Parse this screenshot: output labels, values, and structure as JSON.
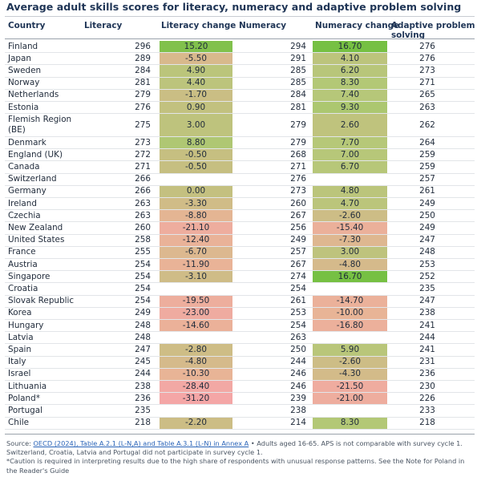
{
  "chart_data": {
    "type": "table",
    "title": "Average adult skills scores for literacy, numeracy and adaptive problem solving",
    "columns": [
      "Country",
      "Literacy",
      "Literacy change",
      "Numeracy",
      "Numeracy change",
      "Adaptive problem solving"
    ],
    "rows": [
      {
        "country": "Finland",
        "literacy": "296",
        "literacy_change": "15.20",
        "numeracy": "294",
        "numeracy_change": "16.70",
        "aps": "276"
      },
      {
        "country": "Japan",
        "literacy": "289",
        "literacy_change": "-5.50",
        "numeracy": "291",
        "numeracy_change": "4.10",
        "aps": "276"
      },
      {
        "country": "Sweden",
        "literacy": "284",
        "literacy_change": "4.90",
        "numeracy": "285",
        "numeracy_change": "6.20",
        "aps": "273"
      },
      {
        "country": "Norway",
        "literacy": "281",
        "literacy_change": "4.40",
        "numeracy": "285",
        "numeracy_change": "8.30",
        "aps": "271"
      },
      {
        "country": "Netherlands",
        "literacy": "279",
        "literacy_change": "-1.70",
        "numeracy": "284",
        "numeracy_change": "7.40",
        "aps": "265"
      },
      {
        "country": "Estonia",
        "literacy": "276",
        "literacy_change": "0.90",
        "numeracy": "281",
        "numeracy_change": "9.30",
        "aps": "263"
      },
      {
        "country": "Flemish Region (BE)",
        "literacy": "275",
        "literacy_change": "3.00",
        "numeracy": "279",
        "numeracy_change": "2.60",
        "aps": "262"
      },
      {
        "country": "Denmark",
        "literacy": "273",
        "literacy_change": "8.80",
        "numeracy": "279",
        "numeracy_change": "7.70",
        "aps": "264"
      },
      {
        "country": "England (UK)",
        "literacy": "272",
        "literacy_change": "-0.50",
        "numeracy": "268",
        "numeracy_change": "7.00",
        "aps": "259"
      },
      {
        "country": "Canada",
        "literacy": "271",
        "literacy_change": "-0.50",
        "numeracy": "271",
        "numeracy_change": "6.70",
        "aps": "259"
      },
      {
        "country": "Switzerland",
        "literacy": "266",
        "literacy_change": "",
        "numeracy": "276",
        "numeracy_change": "",
        "aps": "257"
      },
      {
        "country": "Germany",
        "literacy": "266",
        "literacy_change": "0.00",
        "numeracy": "273",
        "numeracy_change": "4.80",
        "aps": "261"
      },
      {
        "country": "Ireland",
        "literacy": "263",
        "literacy_change": "-3.30",
        "numeracy": "260",
        "numeracy_change": "4.70",
        "aps": "249"
      },
      {
        "country": "Czechia",
        "literacy": "263",
        "literacy_change": "-8.80",
        "numeracy": "267",
        "numeracy_change": "-2.60",
        "aps": "250"
      },
      {
        "country": "New Zealand",
        "literacy": "260",
        "literacy_change": "-21.10",
        "numeracy": "256",
        "numeracy_change": "-15.40",
        "aps": "249"
      },
      {
        "country": "United States",
        "literacy": "258",
        "literacy_change": "-12.40",
        "numeracy": "249",
        "numeracy_change": "-7.30",
        "aps": "247"
      },
      {
        "country": "France",
        "literacy": "255",
        "literacy_change": "-6.70",
        "numeracy": "257",
        "numeracy_change": "3.00",
        "aps": "248"
      },
      {
        "country": "Austria",
        "literacy": "254",
        "literacy_change": "-11.90",
        "numeracy": "267",
        "numeracy_change": "-4.80",
        "aps": "253"
      },
      {
        "country": "Singapore",
        "literacy": "254",
        "literacy_change": "-3.10",
        "numeracy": "274",
        "numeracy_change": "16.70",
        "aps": "252"
      },
      {
        "country": "Croatia",
        "literacy": "254",
        "literacy_change": "",
        "numeracy": "254",
        "numeracy_change": "",
        "aps": "235"
      },
      {
        "country": "Slovak Republic",
        "literacy": "254",
        "literacy_change": "-19.50",
        "numeracy": "261",
        "numeracy_change": "-14.70",
        "aps": "247"
      },
      {
        "country": "Korea",
        "literacy": "249",
        "literacy_change": "-23.00",
        "numeracy": "253",
        "numeracy_change": "-10.00",
        "aps": "238"
      },
      {
        "country": "Hungary",
        "literacy": "248",
        "literacy_change": "-14.60",
        "numeracy": "254",
        "numeracy_change": "-16.80",
        "aps": "241"
      },
      {
        "country": "Latvia",
        "literacy": "248",
        "literacy_change": "",
        "numeracy": "263",
        "numeracy_change": "",
        "aps": "244"
      },
      {
        "country": "Spain",
        "literacy": "247",
        "literacy_change": "-2.80",
        "numeracy": "250",
        "numeracy_change": "5.90",
        "aps": "241"
      },
      {
        "country": "Italy",
        "literacy": "245",
        "literacy_change": "-4.80",
        "numeracy": "244",
        "numeracy_change": "-2.60",
        "aps": "231"
      },
      {
        "country": "Israel",
        "literacy": "244",
        "literacy_change": "-10.30",
        "numeracy": "246",
        "numeracy_change": "-4.30",
        "aps": "236"
      },
      {
        "country": "Lithuania",
        "literacy": "238",
        "literacy_change": "-28.40",
        "numeracy": "246",
        "numeracy_change": "-21.50",
        "aps": "230"
      },
      {
        "country": "Poland*",
        "literacy": "236",
        "literacy_change": "-31.20",
        "numeracy": "239",
        "numeracy_change": "-21.00",
        "aps": "226"
      },
      {
        "country": "Portugal",
        "literacy": "235",
        "literacy_change": "",
        "numeracy": "238",
        "numeracy_change": "",
        "aps": "233"
      },
      {
        "country": "Chile",
        "literacy": "218",
        "literacy_change": "-2.20",
        "numeracy": "214",
        "numeracy_change": "8.30",
        "aps": "218"
      }
    ],
    "color_scale": {
      "most_positive": "#76c043",
      "positive": "#b5c878",
      "neutral": "#c4c080",
      "negative": "#e8b496",
      "most_negative": "#f4a6a6"
    }
  },
  "headers": {
    "country": "Country",
    "literacy": "Literacy",
    "literacy_change": "Literacy change",
    "numeracy": "Numeracy",
    "numeracy_change": "Numeracy change",
    "aps_line1": "Adaptive problem",
    "aps_line2": "solving"
  },
  "footer": {
    "source_prefix": "Source: ",
    "source_link": "OECD (2024), Table A.2.1 (L-N,A) and Table A.3.1 (L-N) in Annex A",
    "source_rest": " • Adults aged 16-65. APS is not comparable with survey cycle 1. Switzerland, Croatia, Latvia and Portugal did not participate in survey cycle 1.",
    "caution": "*Caution is required in interpreting results due to the high share of respondents with unusual response patterns. See the Note for Poland in the Reader's Guide"
  }
}
